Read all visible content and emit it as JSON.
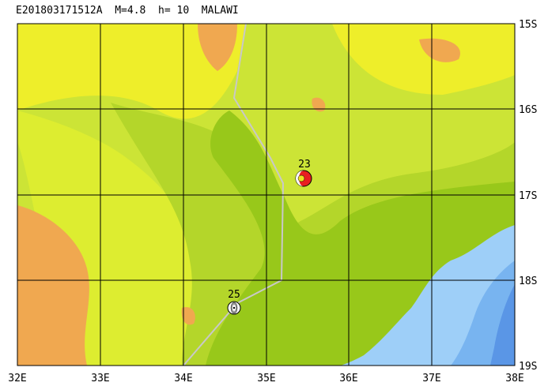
{
  "title": "E201803171512A  M=4.8  h= 10  MALAWI",
  "lat_labels": [
    "15S",
    "16S",
    "17S",
    "18S",
    "19S"
  ],
  "lon_labels": [
    "32E",
    "33E",
    "34E",
    "35E",
    "36E",
    "37E",
    "38E"
  ],
  "events": [
    {
      "label": "23"
    },
    {
      "label": "25"
    }
  ]
}
